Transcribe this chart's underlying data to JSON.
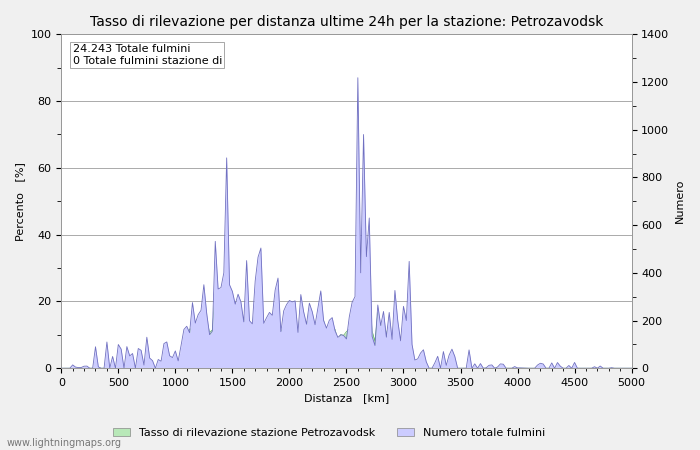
{
  "title": "Tasso di rilevazione per distanza ultime 24h per la stazione: Petrozavodsk",
  "xlabel": "Distanza   [km]",
  "ylabel_left": "Percento   [%]",
  "ylabel_right": "Numero",
  "annotation_line1": "24.243 Totale fulmini",
  "annotation_line2": "0 Totale fulmini stazione di",
  "xlim": [
    0,
    5000
  ],
  "ylim_left": [
    0,
    100
  ],
  "ylim_right": [
    0,
    1400
  ],
  "xticks": [
    0,
    500,
    1000,
    1500,
    2000,
    2500,
    3000,
    3500,
    4000,
    4500,
    5000
  ],
  "yticks_left": [
    0,
    20,
    40,
    60,
    80,
    100
  ],
  "yticks_right": [
    0,
    200,
    400,
    600,
    800,
    1000,
    1200,
    1400
  ],
  "legend_label_green": "Tasso di rilevazione stazione Petrozavodsk",
  "legend_label_blue": "Numero totale fulmini",
  "watermark": "www.lightningmaps.org",
  "bg_color": "#f0f0f0",
  "plot_bg_color": "#ffffff",
  "grid_color": "#aaaaaa",
  "fill_blue_color": "#ccccff",
  "fill_green_color": "#b8e8b8",
  "line_blue_color": "#7070c0",
  "line_green_color": "#60b060",
  "title_fontsize": 10,
  "axis_label_fontsize": 8,
  "tick_fontsize": 8,
  "annotation_fontsize": 8
}
